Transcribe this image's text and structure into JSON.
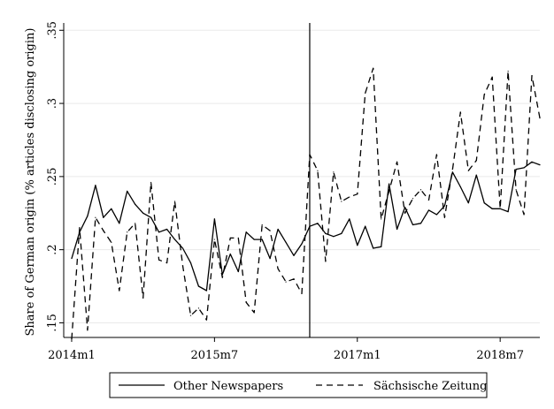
{
  "chart_data": {
    "type": "line",
    "ylabel": "Share of German origin (% articles disclosing origin)",
    "xlabel": "",
    "ylim": [
      0.14,
      0.355
    ],
    "y_ticks": [
      {
        "value": 0.15,
        "label": ".15"
      },
      {
        "value": 0.2,
        "label": ".2"
      },
      {
        "value": 0.25,
        "label": ".25"
      },
      {
        "value": 0.3,
        "label": ".3"
      },
      {
        "value": 0.35,
        "label": ".35"
      }
    ],
    "x_ticks": [
      {
        "value": 0,
        "label": "2014m1"
      },
      {
        "value": 18,
        "label": "2015m7"
      },
      {
        "value": 36,
        "label": "2017m1"
      },
      {
        "value": 54,
        "label": "2018m7"
      }
    ],
    "x_range": [
      -1,
      59
    ],
    "vertical_line_x": 30,
    "grid": true,
    "legend_position": "bottom",
    "series": [
      {
        "name": "Other Newspapers",
        "style": "solid",
        "values": [
          0.194,
          0.212,
          0.223,
          0.244,
          0.222,
          0.228,
          0.218,
          0.24,
          0.231,
          0.225,
          0.222,
          0.212,
          0.214,
          0.207,
          0.201,
          0.191,
          0.175,
          0.172,
          0.221,
          0.183,
          0.197,
          0.185,
          0.212,
          0.207,
          0.207,
          0.194,
          0.214,
          0.205,
          0.196,
          0.204,
          0.216,
          0.218,
          0.211,
          0.209,
          0.211,
          0.221,
          0.203,
          0.216,
          0.201,
          0.202,
          0.245,
          0.214,
          0.229,
          0.217,
          0.218,
          0.227,
          0.224,
          0.23,
          0.253,
          0.243,
          0.232,
          0.251,
          0.232,
          0.228,
          0.228,
          0.226,
          0.255,
          0.256,
          0.26,
          0.258
        ]
      },
      {
        "name": "Sächsische Zeitung",
        "style": "dashed",
        "values": [
          0.139,
          0.215,
          0.145,
          0.222,
          0.213,
          0.205,
          0.172,
          0.212,
          0.218,
          0.167,
          0.246,
          0.193,
          0.191,
          0.233,
          0.189,
          0.155,
          0.16,
          0.152,
          0.207,
          0.181,
          0.208,
          0.208,
          0.164,
          0.157,
          0.217,
          0.213,
          0.187,
          0.178,
          0.18,
          0.17,
          0.265,
          0.254,
          0.192,
          0.253,
          0.233,
          0.236,
          0.238,
          0.307,
          0.324,
          0.221,
          0.24,
          0.26,
          0.225,
          0.235,
          0.241,
          0.234,
          0.265,
          0.222,
          0.255,
          0.294,
          0.254,
          0.261,
          0.306,
          0.318,
          0.228,
          0.322,
          0.241,
          0.224,
          0.319,
          0.29
        ]
      }
    ]
  }
}
